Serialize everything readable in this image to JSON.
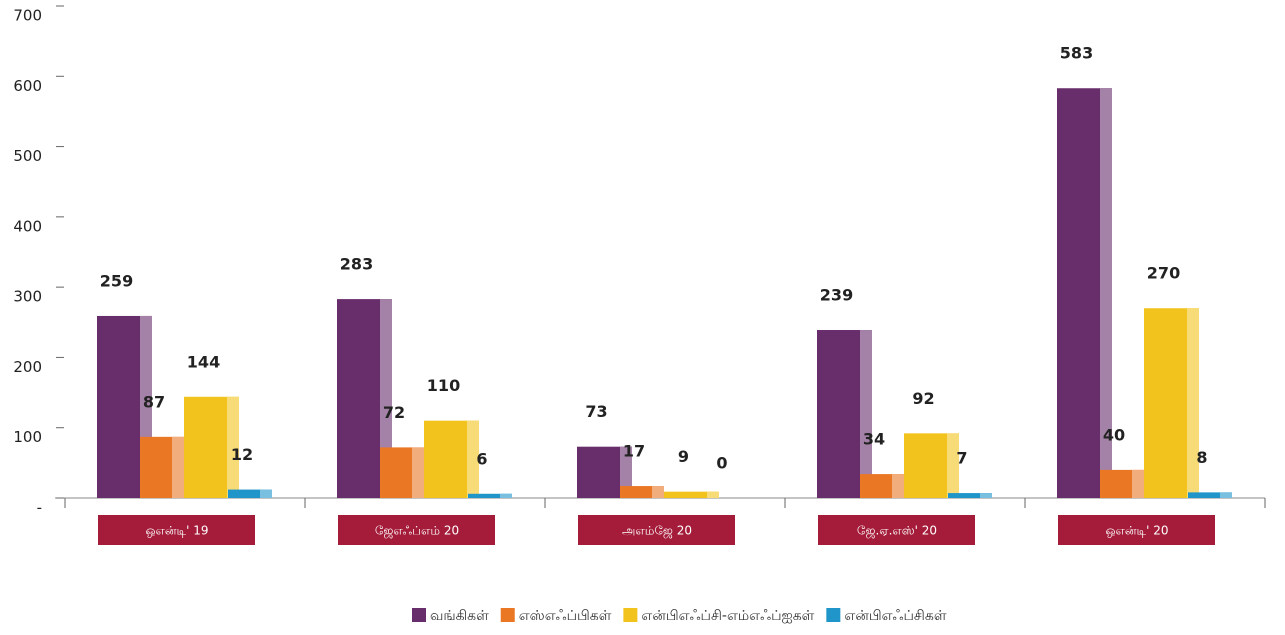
{
  "chart_data": {
    "type": "bar",
    "categories": [
      "ஒஎன்டி' 19",
      "ஜேஎஃப்எம் 20",
      "அஎம்ஜே 20",
      "ஜே.ஏ.எஸ்' 20",
      "ஒஎன்டி' 20"
    ],
    "series": [
      {
        "name": "வங்கிகள்",
        "color": "#682d6b",
        "values": [
          259,
          283,
          73,
          239,
          583
        ]
      },
      {
        "name": "எஸ்எஃப்பிகள்",
        "color": "#e97724",
        "values": [
          87,
          72,
          17,
          34,
          40
        ]
      },
      {
        "name": "என்பிஎஃப்சி-எம்எஃப்ஐகள்",
        "color": "#f2c31c",
        "values": [
          144,
          110,
          9,
          92,
          270
        ]
      },
      {
        "name": "என்பிஎஃப்சிகள்",
        "color": "#1f95c9",
        "values": [
          12,
          6,
          0,
          7,
          8
        ]
      }
    ],
    "ylim": [
      0,
      700
    ],
    "yticks": [
      {
        "value": 0,
        "label": "-"
      },
      100,
      200,
      300,
      400,
      500,
      600,
      700
    ],
    "category_box_color": "#a51c3a"
  }
}
